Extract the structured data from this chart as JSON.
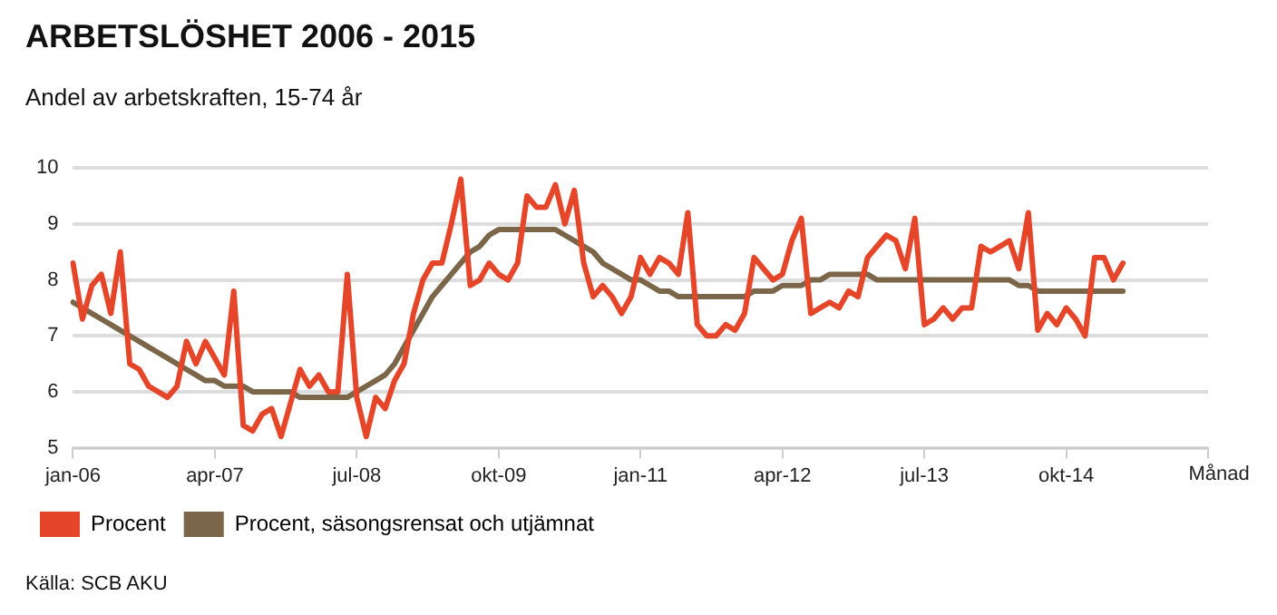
{
  "chart_data": {
    "type": "line",
    "title": "ARBETSLÖSHET 2006 - 2015",
    "subtitle": "Andel av arbetskraften, 15-74 år",
    "xlabel": "Månad",
    "categories": [
      "jan-06",
      null,
      null,
      null,
      null,
      null,
      null,
      null,
      null,
      null,
      null,
      null,
      null,
      null,
      null,
      "apr-07",
      null,
      null,
      null,
      null,
      null,
      null,
      null,
      null,
      null,
      null,
      null,
      null,
      null,
      null,
      "jul-08",
      null,
      null,
      null,
      null,
      null,
      null,
      null,
      null,
      null,
      null,
      null,
      null,
      null,
      null,
      "okt-09",
      null,
      null,
      null,
      null,
      null,
      null,
      null,
      null,
      null,
      null,
      null,
      null,
      null,
      null,
      "jan-11",
      null,
      null,
      null,
      null,
      null,
      null,
      null,
      null,
      null,
      null,
      null,
      null,
      null,
      null,
      "apr-12",
      null,
      null,
      null,
      null,
      null,
      null,
      null,
      null,
      null,
      null,
      null,
      null,
      null,
      null,
      "jul-13",
      null,
      null,
      null,
      null,
      null,
      null,
      null,
      null,
      null,
      null,
      null,
      null,
      null,
      null,
      "okt-14",
      null,
      null,
      null,
      null,
      null,
      null,
      null,
      null,
      null,
      null,
      null,
      null,
      null,
      null,
      null
    ],
    "series": [
      {
        "name": "Procent",
        "color": "#e54528",
        "values": [
          8.3,
          7.3,
          7.9,
          8.1,
          7.4,
          8.5,
          6.5,
          6.4,
          6.1,
          6.0,
          5.9,
          6.1,
          6.9,
          6.5,
          6.9,
          6.6,
          6.3,
          7.8,
          5.4,
          5.3,
          5.6,
          5.7,
          5.2,
          5.8,
          6.4,
          6.1,
          6.3,
          6.0,
          6.0,
          8.1,
          5.9,
          5.2,
          5.9,
          5.7,
          6.2,
          6.5,
          7.4,
          8.0,
          8.3,
          8.3,
          9.0,
          9.8,
          7.9,
          8.0,
          8.3,
          8.1,
          8.0,
          8.3,
          9.5,
          9.3,
          9.3,
          9.7,
          9.0,
          9.6,
          8.3,
          7.7,
          7.9,
          7.7,
          7.4,
          7.7,
          8.4,
          8.1,
          8.4,
          8.3,
          8.1,
          9.2,
          7.2,
          7.0,
          7.0,
          7.2,
          7.1,
          7.4,
          8.4,
          8.2,
          8.0,
          8.1,
          8.7,
          9.1,
          7.4,
          7.5,
          7.6,
          7.5,
          7.8,
          7.7,
          8.4,
          8.6,
          8.8,
          8.7,
          8.2,
          9.1,
          7.2,
          7.3,
          7.5,
          7.3,
          7.5,
          7.5,
          8.6,
          8.5,
          8.6,
          8.7,
          8.2,
          9.2,
          7.1,
          7.4,
          7.2,
          7.5,
          7.3,
          7.0,
          8.4,
          8.4,
          8.0,
          8.3,
          null,
          null,
          null,
          null,
          null,
          null,
          null,
          null,
          null
        ]
      },
      {
        "name": "Procent, säsongsrensat och utjämnat",
        "color": "#7b6649",
        "values": [
          7.6,
          7.5,
          7.4,
          7.3,
          7.2,
          7.1,
          7.0,
          6.9,
          6.8,
          6.7,
          6.6,
          6.5,
          6.4,
          6.3,
          6.2,
          6.2,
          6.1,
          6.1,
          6.1,
          6.0,
          6.0,
          6.0,
          6.0,
          6.0,
          5.9,
          5.9,
          5.9,
          5.9,
          5.9,
          5.9,
          6.0,
          6.1,
          6.2,
          6.3,
          6.5,
          6.8,
          7.1,
          7.4,
          7.7,
          7.9,
          8.1,
          8.3,
          8.5,
          8.6,
          8.8,
          8.9,
          8.9,
          8.9,
          8.9,
          8.9,
          8.9,
          8.9,
          8.8,
          8.7,
          8.6,
          8.5,
          8.3,
          8.2,
          8.1,
          8.0,
          8.0,
          7.9,
          7.8,
          7.8,
          7.7,
          7.7,
          7.7,
          7.7,
          7.7,
          7.7,
          7.7,
          7.7,
          7.8,
          7.8,
          7.8,
          7.9,
          7.9,
          7.9,
          8.0,
          8.0,
          8.1,
          8.1,
          8.1,
          8.1,
          8.1,
          8.0,
          8.0,
          8.0,
          8.0,
          8.0,
          8.0,
          8.0,
          8.0,
          8.0,
          8.0,
          8.0,
          8.0,
          8.0,
          8.0,
          8.0,
          7.9,
          7.9,
          7.8,
          7.8,
          7.8,
          7.8,
          7.8,
          7.8,
          7.8,
          7.8,
          7.8,
          7.8,
          null,
          null,
          null,
          null,
          null,
          null,
          null,
          null,
          null
        ]
      }
    ],
    "ylim": [
      5,
      10
    ],
    "yticks": [
      5,
      6,
      7,
      8,
      9,
      10
    ],
    "grid": "y",
    "legend": "bottom left",
    "marker": "none",
    "line_style": "solid",
    "annotations": [
      "Källa: SCB AKU"
    ]
  }
}
